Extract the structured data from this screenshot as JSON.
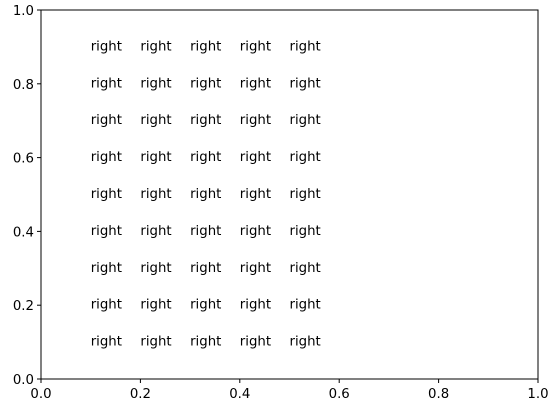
{
  "chart_data": {
    "type": "scatter",
    "title": "",
    "xlabel": "",
    "ylabel": "",
    "xlim": [
      0,
      1
    ],
    "ylim": [
      0,
      1
    ],
    "grid": false,
    "x_ticks": [
      0.0,
      0.2,
      0.4,
      0.6,
      0.8,
      1.0
    ],
    "y_ticks": [
      0.0,
      0.2,
      0.4,
      0.6,
      0.8,
      1.0
    ],
    "x_tick_labels": [
      "0.0",
      "0.2",
      "0.4",
      "0.6",
      "0.8",
      "1.0"
    ],
    "y_tick_labels": [
      "0.0",
      "0.2",
      "0.4",
      "0.6",
      "0.8",
      "1.0"
    ],
    "annotations": [
      {
        "x": 0.1,
        "y": 0.9,
        "text": "right"
      },
      {
        "x": 0.2,
        "y": 0.9,
        "text": "right"
      },
      {
        "x": 0.3,
        "y": 0.9,
        "text": "right"
      },
      {
        "x": 0.4,
        "y": 0.9,
        "text": "right"
      },
      {
        "x": 0.5,
        "y": 0.9,
        "text": "right"
      },
      {
        "x": 0.1,
        "y": 0.8,
        "text": "right"
      },
      {
        "x": 0.2,
        "y": 0.8,
        "text": "right"
      },
      {
        "x": 0.3,
        "y": 0.8,
        "text": "right"
      },
      {
        "x": 0.4,
        "y": 0.8,
        "text": "right"
      },
      {
        "x": 0.5,
        "y": 0.8,
        "text": "right"
      },
      {
        "x": 0.1,
        "y": 0.7,
        "text": "right"
      },
      {
        "x": 0.2,
        "y": 0.7,
        "text": "right"
      },
      {
        "x": 0.3,
        "y": 0.7,
        "text": "right"
      },
      {
        "x": 0.4,
        "y": 0.7,
        "text": "right"
      },
      {
        "x": 0.5,
        "y": 0.7,
        "text": "right"
      },
      {
        "x": 0.1,
        "y": 0.6,
        "text": "right"
      },
      {
        "x": 0.2,
        "y": 0.6,
        "text": "right"
      },
      {
        "x": 0.3,
        "y": 0.6,
        "text": "right"
      },
      {
        "x": 0.4,
        "y": 0.6,
        "text": "right"
      },
      {
        "x": 0.5,
        "y": 0.6,
        "text": "right"
      },
      {
        "x": 0.1,
        "y": 0.5,
        "text": "right"
      },
      {
        "x": 0.2,
        "y": 0.5,
        "text": "right"
      },
      {
        "x": 0.3,
        "y": 0.5,
        "text": "right"
      },
      {
        "x": 0.4,
        "y": 0.5,
        "text": "right"
      },
      {
        "x": 0.5,
        "y": 0.5,
        "text": "right"
      },
      {
        "x": 0.1,
        "y": 0.4,
        "text": "right"
      },
      {
        "x": 0.2,
        "y": 0.4,
        "text": "right"
      },
      {
        "x": 0.3,
        "y": 0.4,
        "text": "right"
      },
      {
        "x": 0.4,
        "y": 0.4,
        "text": "right"
      },
      {
        "x": 0.5,
        "y": 0.4,
        "text": "right"
      },
      {
        "x": 0.1,
        "y": 0.3,
        "text": "right"
      },
      {
        "x": 0.2,
        "y": 0.3,
        "text": "right"
      },
      {
        "x": 0.3,
        "y": 0.3,
        "text": "right"
      },
      {
        "x": 0.4,
        "y": 0.3,
        "text": "right"
      },
      {
        "x": 0.5,
        "y": 0.3,
        "text": "right"
      },
      {
        "x": 0.1,
        "y": 0.2,
        "text": "right"
      },
      {
        "x": 0.2,
        "y": 0.2,
        "text": "right"
      },
      {
        "x": 0.3,
        "y": 0.2,
        "text": "right"
      },
      {
        "x": 0.4,
        "y": 0.2,
        "text": "right"
      },
      {
        "x": 0.5,
        "y": 0.2,
        "text": "right"
      },
      {
        "x": 0.1,
        "y": 0.1,
        "text": "right"
      },
      {
        "x": 0.2,
        "y": 0.1,
        "text": "right"
      },
      {
        "x": 0.3,
        "y": 0.1,
        "text": "right"
      },
      {
        "x": 0.4,
        "y": 0.1,
        "text": "right"
      },
      {
        "x": 0.5,
        "y": 0.1,
        "text": "right"
      }
    ]
  }
}
